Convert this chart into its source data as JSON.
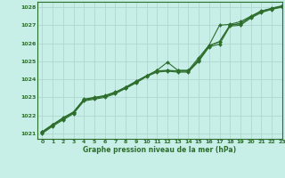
{
  "title": "Graphe pression niveau de la mer (hPa)",
  "bg_color": "#c8eee8",
  "grid_color": "#b0d8d0",
  "line_color": "#2d6e2d",
  "xlim": [
    -0.5,
    23
  ],
  "ylim": [
    1020.7,
    1028.3
  ],
  "xticks": [
    0,
    1,
    2,
    3,
    4,
    5,
    6,
    7,
    8,
    9,
    10,
    11,
    12,
    13,
    14,
    15,
    16,
    17,
    18,
    19,
    20,
    21,
    22,
    23
  ],
  "yticks": [
    1021,
    1022,
    1023,
    1024,
    1025,
    1026,
    1027,
    1028
  ],
  "series": [
    [
      1021.1,
      1021.5,
      1021.85,
      1022.2,
      1022.9,
      1023.0,
      1023.1,
      1023.3,
      1023.5,
      1023.85,
      1024.2,
      1024.5,
      1024.95,
      1024.5,
      1024.5,
      1025.2,
      1025.9,
      1027.0,
      1027.05,
      1027.2,
      1027.5,
      1027.8,
      1027.9,
      1028.05
    ],
    [
      1021.05,
      1021.45,
      1021.8,
      1022.15,
      1022.85,
      1022.95,
      1023.05,
      1023.25,
      1023.55,
      1023.9,
      1024.2,
      1024.45,
      1024.5,
      1024.45,
      1024.45,
      1025.05,
      1025.85,
      1026.1,
      1027.0,
      1027.1,
      1027.45,
      1027.75,
      1027.92,
      1028.05
    ],
    [
      1021.0,
      1021.4,
      1021.75,
      1022.1,
      1022.8,
      1022.9,
      1023.0,
      1023.2,
      1023.5,
      1023.8,
      1024.15,
      1024.4,
      1024.45,
      1024.4,
      1024.4,
      1025.0,
      1025.8,
      1025.95,
      1026.95,
      1027.0,
      1027.4,
      1027.7,
      1027.88,
      1028.0
    ],
    [
      1021.08,
      1021.48,
      1021.88,
      1022.18,
      1022.88,
      1022.98,
      1023.08,
      1023.28,
      1023.58,
      1023.88,
      1024.18,
      1024.48,
      1024.48,
      1024.48,
      1024.48,
      1025.08,
      1025.88,
      1026.08,
      1027.0,
      1027.08,
      1027.48,
      1027.78,
      1027.95,
      1028.08
    ]
  ]
}
